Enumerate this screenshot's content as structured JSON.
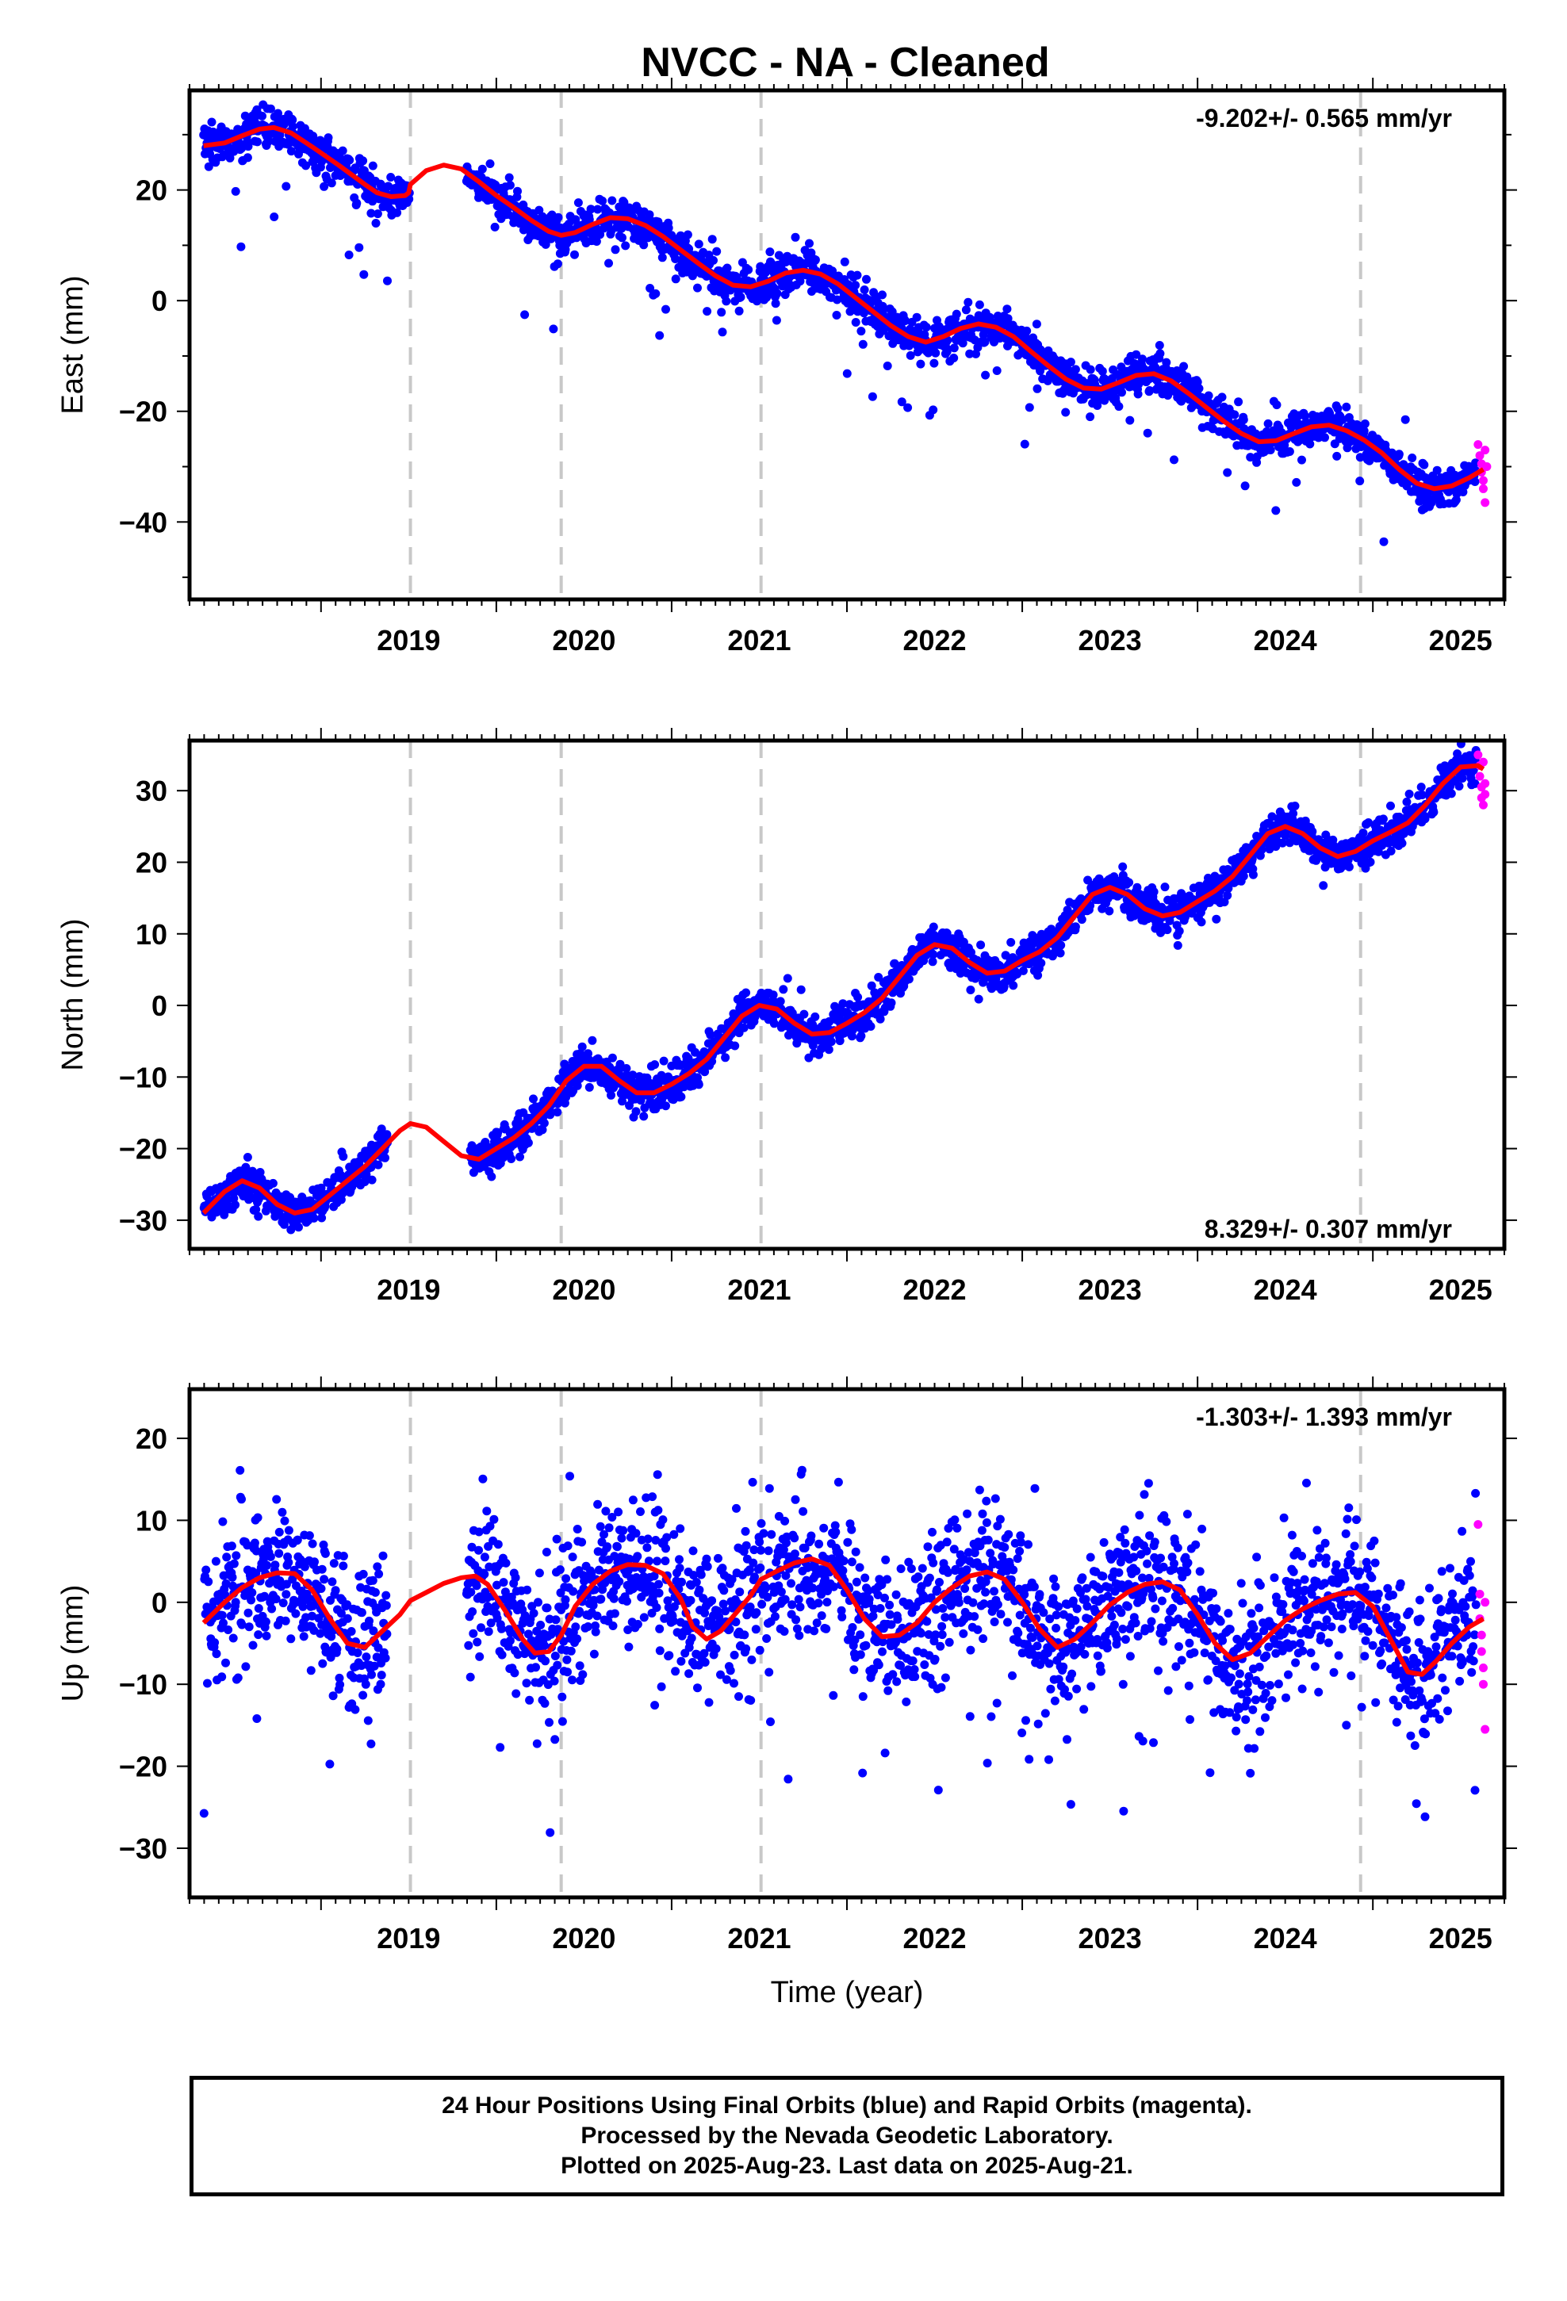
{
  "title": "NVCC  - NA - Cleaned",
  "colors": {
    "final_points": "#0000ff",
    "rapid_points": "#ff00ff",
    "model_line": "#ff0000",
    "dashed_lines": "#c8c8c8",
    "frame": "#000000"
  },
  "legend": {
    "line1": "24 Hour Positions Using Final Orbits (blue) and Rapid Orbits (magenta).",
    "line2": "Processed by the Nevada Geodetic Laboratory.",
    "line3": "Plotted on 2025-Aug-23. Last data on 2025-Aug-21."
  },
  "chart_data": [
    {
      "type": "scatter",
      "component": "East",
      "ylabel": "East (mm)",
      "xlabel": "",
      "rate": "-9.202+/- 0.565 mm/yr",
      "rate_placement": "top-right",
      "xlim": [
        2018.25,
        2025.75
      ],
      "ylim": [
        -54,
        38
      ],
      "xticks": [
        "2019",
        "2020",
        "2021",
        "2022",
        "2023",
        "2024",
        "2025"
      ],
      "yticks": [
        20,
        0,
        -20,
        -40
      ],
      "grid": false,
      "dashed_epochs": [
        2019.51,
        2020.37,
        2021.51,
        2024.93
      ],
      "gaps": [
        [
          2019.51,
          2019.83
        ]
      ],
      "model_curve": [
        [
          2018.33,
          28
        ],
        [
          2018.45,
          28.5
        ],
        [
          2018.55,
          29.8
        ],
        [
          2018.65,
          31
        ],
        [
          2018.73,
          31.3
        ],
        [
          2018.83,
          30.3
        ],
        [
          2018.95,
          27.8
        ],
        [
          2019.1,
          24.5
        ],
        [
          2019.25,
          21
        ],
        [
          2019.32,
          19.5
        ],
        [
          2019.4,
          18.8
        ],
        [
          2019.48,
          19
        ],
        [
          2019.5,
          19.5
        ],
        [
          2019.51,
          21
        ],
        [
          2019.6,
          23.5
        ],
        [
          2019.7,
          24.5
        ],
        [
          2019.8,
          23.8
        ],
        [
          2019.9,
          21.5
        ],
        [
          2020.0,
          19
        ],
        [
          2020.1,
          16.8
        ],
        [
          2020.2,
          14.5
        ],
        [
          2020.3,
          12.5
        ],
        [
          2020.37,
          11.8
        ],
        [
          2020.45,
          12.3
        ],
        [
          2020.55,
          13.8
        ],
        [
          2020.65,
          15
        ],
        [
          2020.75,
          14.8
        ],
        [
          2020.85,
          13.6
        ],
        [
          2020.95,
          11.6
        ],
        [
          2021.05,
          9.2
        ],
        [
          2021.15,
          6.8
        ],
        [
          2021.25,
          4.5
        ],
        [
          2021.35,
          2.8
        ],
        [
          2021.45,
          2.5
        ],
        [
          2021.55,
          3.5
        ],
        [
          2021.65,
          5
        ],
        [
          2021.75,
          5.5
        ],
        [
          2021.85,
          4.8
        ],
        [
          2021.95,
          3
        ],
        [
          2022.05,
          0.5
        ],
        [
          2022.15,
          -2
        ],
        [
          2022.25,
          -4.5
        ],
        [
          2022.35,
          -6.5
        ],
        [
          2022.45,
          -7.5
        ],
        [
          2022.55,
          -6.5
        ],
        [
          2022.65,
          -5
        ],
        [
          2022.75,
          -4.2
        ],
        [
          2022.85,
          -4.8
        ],
        [
          2022.95,
          -6.5
        ],
        [
          2023.05,
          -9.2
        ],
        [
          2023.15,
          -11.8
        ],
        [
          2023.25,
          -14.2
        ],
        [
          2023.35,
          -15.8
        ],
        [
          2023.45,
          -16
        ],
        [
          2023.55,
          -14.8
        ],
        [
          2023.65,
          -13.5
        ],
        [
          2023.75,
          -13.2
        ],
        [
          2023.85,
          -14.5
        ],
        [
          2023.95,
          -16.8
        ],
        [
          2024.05,
          -19.3
        ],
        [
          2024.15,
          -21.8
        ],
        [
          2024.25,
          -24
        ],
        [
          2024.35,
          -25.5
        ],
        [
          2024.45,
          -25.3
        ],
        [
          2024.55,
          -24
        ],
        [
          2024.65,
          -22.8
        ],
        [
          2024.75,
          -22.5
        ],
        [
          2024.85,
          -23.5
        ],
        [
          2024.95,
          -25.2
        ],
        [
          2025.05,
          -27.5
        ],
        [
          2025.15,
          -30.5
        ],
        [
          2025.25,
          -33
        ],
        [
          2025.35,
          -34
        ],
        [
          2025.45,
          -33.5
        ],
        [
          2025.55,
          -32
        ],
        [
          2025.63,
          -30.5
        ]
      ],
      "noise_sd": 1.8,
      "outlier_prob": 0.04,
      "outlier_range": [
        -18,
        6
      ],
      "rapid_points": [
        [
          2025.6,
          -26
        ],
        [
          2025.61,
          -28
        ],
        [
          2025.62,
          -29.5
        ],
        [
          2025.62,
          -31
        ],
        [
          2025.63,
          -32.5
        ],
        [
          2025.63,
          -34
        ],
        [
          2025.64,
          -36.5
        ],
        [
          2025.64,
          -27
        ],
        [
          2025.65,
          -30
        ]
      ]
    },
    {
      "type": "scatter",
      "component": "North",
      "ylabel": "North (mm)",
      "xlabel": "",
      "rate": "8.329+/- 0.307 mm/yr",
      "rate_placement": "bottom-right",
      "xlim": [
        2018.25,
        2025.75
      ],
      "ylim": [
        -34,
        37
      ],
      "xticks": [
        "2019",
        "2020",
        "2021",
        "2022",
        "2023",
        "2024",
        "2025"
      ],
      "yticks": [
        30,
        20,
        10,
        0,
        -10,
        -20,
        -30
      ],
      "grid": false,
      "dashed_epochs": [
        2019.51,
        2020.37,
        2021.51,
        2024.93
      ],
      "gaps": [
        [
          2019.38,
          2019.85
        ]
      ],
      "model_curve": [
        [
          2018.33,
          -29
        ],
        [
          2018.45,
          -26
        ],
        [
          2018.55,
          -24.5
        ],
        [
          2018.65,
          -25.5
        ],
        [
          2018.75,
          -27.8
        ],
        [
          2018.85,
          -29
        ],
        [
          2018.95,
          -28.5
        ],
        [
          2019.05,
          -26.5
        ],
        [
          2019.15,
          -24.5
        ],
        [
          2019.25,
          -22.5
        ],
        [
          2019.35,
          -20
        ],
        [
          2019.45,
          -17.5
        ],
        [
          2019.51,
          -16.5
        ],
        [
          2019.6,
          -17
        ],
        [
          2019.7,
          -19
        ],
        [
          2019.8,
          -21
        ],
        [
          2019.9,
          -21.5
        ],
        [
          2020.0,
          -20
        ],
        [
          2020.1,
          -18.5
        ],
        [
          2020.2,
          -16.5
        ],
        [
          2020.3,
          -14
        ],
        [
          2020.4,
          -10.5
        ],
        [
          2020.5,
          -8.5
        ],
        [
          2020.6,
          -8.5
        ],
        [
          2020.7,
          -10.5
        ],
        [
          2020.8,
          -12.2
        ],
        [
          2020.9,
          -12.2
        ],
        [
          2021.0,
          -11
        ],
        [
          2021.1,
          -9.5
        ],
        [
          2021.2,
          -7.5
        ],
        [
          2021.3,
          -4.5
        ],
        [
          2021.4,
          -1.5
        ],
        [
          2021.5,
          0
        ],
        [
          2021.6,
          -0.5
        ],
        [
          2021.7,
          -2.5
        ],
        [
          2021.8,
          -4
        ],
        [
          2021.9,
          -3.8
        ],
        [
          2022.0,
          -2.5
        ],
        [
          2022.1,
          -1
        ],
        [
          2022.2,
          1
        ],
        [
          2022.3,
          4
        ],
        [
          2022.4,
          7
        ],
        [
          2022.5,
          8.5
        ],
        [
          2022.6,
          8
        ],
        [
          2022.7,
          6
        ],
        [
          2022.8,
          4.5
        ],
        [
          2022.9,
          4.8
        ],
        [
          2023.0,
          6.3
        ],
        [
          2023.1,
          7.5
        ],
        [
          2023.2,
          9.5
        ],
        [
          2023.3,
          12.5
        ],
        [
          2023.4,
          15.5
        ],
        [
          2023.5,
          16.5
        ],
        [
          2023.6,
          15.5
        ],
        [
          2023.7,
          13.5
        ],
        [
          2023.8,
          12.5
        ],
        [
          2023.9,
          13
        ],
        [
          2024.0,
          14.5
        ],
        [
          2024.1,
          16
        ],
        [
          2024.2,
          18
        ],
        [
          2024.3,
          21
        ],
        [
          2024.4,
          24
        ],
        [
          2024.5,
          25
        ],
        [
          2024.6,
          24
        ],
        [
          2024.7,
          22
        ],
        [
          2024.8,
          20.8
        ],
        [
          2024.9,
          21.5
        ],
        [
          2025.0,
          23
        ],
        [
          2025.1,
          24.2
        ],
        [
          2025.2,
          25.5
        ],
        [
          2025.3,
          28
        ],
        [
          2025.4,
          31
        ],
        [
          2025.5,
          33.3
        ],
        [
          2025.6,
          33.5
        ],
        [
          2025.63,
          33
        ]
      ],
      "noise_sd": 1.3,
      "outlier_prob": 0.01,
      "outlier_range": [
        -5,
        5
      ],
      "rapid_points": [
        [
          2025.6,
          35
        ],
        [
          2025.61,
          33.5
        ],
        [
          2025.61,
          32
        ],
        [
          2025.62,
          30.5
        ],
        [
          2025.62,
          29
        ],
        [
          2025.63,
          28
        ],
        [
          2025.63,
          34
        ],
        [
          2025.64,
          31
        ],
        [
          2025.64,
          29.5
        ]
      ]
    },
    {
      "type": "scatter",
      "component": "Up",
      "ylabel": "Up (mm)",
      "xlabel": "Time (year)",
      "rate": "-1.303+/- 1.393 mm/yr",
      "rate_placement": "top-right",
      "xlim": [
        2018.25,
        2025.75
      ],
      "ylim": [
        -36,
        26
      ],
      "xticks": [
        "2019",
        "2020",
        "2021",
        "2022",
        "2023",
        "2024",
        "2025"
      ],
      "yticks": [
        20,
        10,
        0,
        -10,
        -20,
        -30
      ],
      "grid": false,
      "dashed_epochs": [
        2019.51,
        2020.37,
        2021.51,
        2024.93
      ],
      "gaps": [
        [
          2019.38,
          2019.83
        ]
      ],
      "model_curve": [
        [
          2018.33,
          -2.5
        ],
        [
          2018.45,
          0
        ],
        [
          2018.55,
          1.8
        ],
        [
          2018.65,
          3
        ],
        [
          2018.75,
          3.6
        ],
        [
          2018.85,
          3.5
        ],
        [
          2018.95,
          1.5
        ],
        [
          2019.05,
          -2
        ],
        [
          2019.15,
          -5
        ],
        [
          2019.25,
          -5.5
        ],
        [
          2019.35,
          -3.5
        ],
        [
          2019.45,
          -1.5
        ],
        [
          2019.51,
          0.2
        ],
        [
          2019.6,
          1.2
        ],
        [
          2019.7,
          2.3
        ],
        [
          2019.8,
          3
        ],
        [
          2019.88,
          3.2
        ],
        [
          2019.95,
          2.2
        ],
        [
          2020.05,
          -1
        ],
        [
          2020.15,
          -4.5
        ],
        [
          2020.22,
          -6.2
        ],
        [
          2020.3,
          -6
        ],
        [
          2020.37,
          -4
        ],
        [
          2020.45,
          -0.5
        ],
        [
          2020.55,
          2.2
        ],
        [
          2020.65,
          3.8
        ],
        [
          2020.75,
          4.6
        ],
        [
          2020.85,
          4.5
        ],
        [
          2020.95,
          3.5
        ],
        [
          2021.05,
          0.5
        ],
        [
          2021.12,
          -3
        ],
        [
          2021.2,
          -4.5
        ],
        [
          2021.28,
          -3.5
        ],
        [
          2021.38,
          -1
        ],
        [
          2021.45,
          0.8
        ],
        [
          2021.51,
          2.8
        ],
        [
          2021.6,
          3.8
        ],
        [
          2021.7,
          4.8
        ],
        [
          2021.8,
          5.3
        ],
        [
          2021.9,
          4.5
        ],
        [
          2022.0,
          1.5
        ],
        [
          2022.1,
          -2
        ],
        [
          2022.2,
          -4.2
        ],
        [
          2022.3,
          -4
        ],
        [
          2022.4,
          -2.5
        ],
        [
          2022.5,
          0
        ],
        [
          2022.6,
          1.8
        ],
        [
          2022.7,
          3.2
        ],
        [
          2022.8,
          3.7
        ],
        [
          2022.9,
          2.8
        ],
        [
          2023.0,
          0
        ],
        [
          2023.1,
          -3.3
        ],
        [
          2023.2,
          -5.5
        ],
        [
          2023.3,
          -4.5
        ],
        [
          2023.4,
          -2.5
        ],
        [
          2023.5,
          -0.3
        ],
        [
          2023.6,
          1.2
        ],
        [
          2023.7,
          2.2
        ],
        [
          2023.8,
          2.5
        ],
        [
          2023.9,
          1.5
        ],
        [
          2024.0,
          -1.5
        ],
        [
          2024.1,
          -5
        ],
        [
          2024.2,
          -7
        ],
        [
          2024.3,
          -6.2
        ],
        [
          2024.4,
          -4.2
        ],
        [
          2024.5,
          -2.2
        ],
        [
          2024.6,
          -0.8
        ],
        [
          2024.7,
          0.2
        ],
        [
          2024.8,
          1
        ],
        [
          2024.9,
          1.2
        ],
        [
          2025.0,
          -0.5
        ],
        [
          2025.1,
          -4.5
        ],
        [
          2025.2,
          -8.5
        ],
        [
          2025.28,
          -8.8
        ],
        [
          2025.36,
          -7.2
        ],
        [
          2025.45,
          -5
        ],
        [
          2025.55,
          -3
        ],
        [
          2025.63,
          -2
        ]
      ],
      "noise_sd": 4.2,
      "outlier_prob": 0.05,
      "outlier_range": [
        -22,
        12
      ],
      "rapid_points": [
        [
          2025.6,
          9.5
        ],
        [
          2025.61,
          1
        ],
        [
          2025.61,
          -2
        ],
        [
          2025.62,
          -4
        ],
        [
          2025.62,
          -6
        ],
        [
          2025.63,
          -8
        ],
        [
          2025.63,
          -10
        ],
        [
          2025.64,
          -15.5
        ],
        [
          2025.64,
          0
        ]
      ]
    }
  ]
}
